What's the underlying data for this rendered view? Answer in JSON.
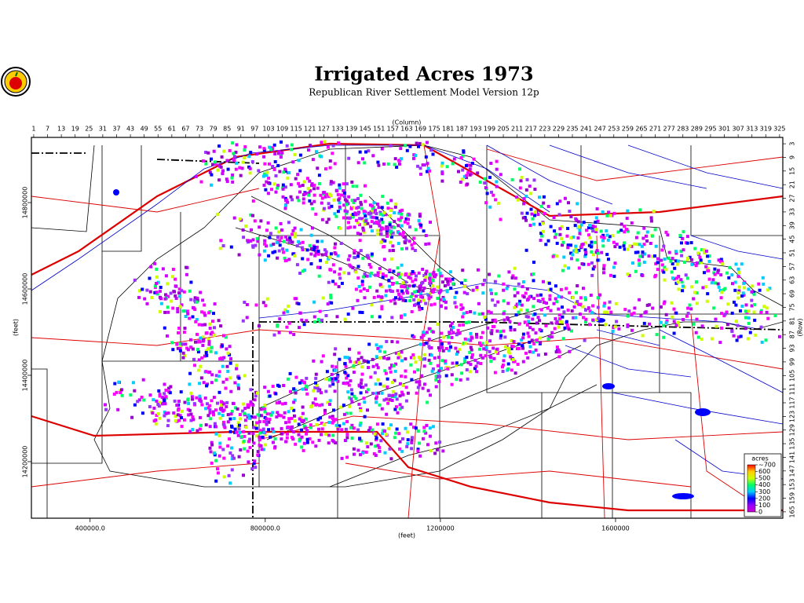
{
  "chart_data": {
    "type": "map",
    "title": "Irrigated Acres 1973",
    "subtitle": "Republican River Settlement Model Version 12p",
    "column_axis": {
      "label": "(Column)",
      "lim": [
        0,
        326.4
      ],
      "ticks": [
        1,
        7,
        13,
        19,
        25,
        31,
        37,
        43,
        49,
        55,
        61,
        67,
        73,
        79,
        85,
        91,
        97,
        103,
        109,
        115,
        121,
        127,
        133,
        139,
        145,
        151,
        157,
        163,
        169,
        175,
        181,
        187,
        193,
        199,
        205,
        211,
        217,
        223,
        229,
        235,
        241,
        247,
        253,
        259,
        265,
        271,
        277,
        283,
        289,
        295,
        301,
        307,
        313,
        319,
        325
      ]
    },
    "row_axis": {
      "label": "(Row)",
      "lim": [
        0.2,
        167.8
      ],
      "ticks": [
        3,
        9,
        15,
        21,
        27,
        33,
        39,
        45,
        51,
        57,
        63,
        69,
        75,
        81,
        87,
        93,
        99,
        105,
        111,
        117,
        123,
        129,
        135,
        141,
        147,
        153,
        159,
        165
      ]
    },
    "xlabel": "(feet)",
    "xlim": [
      266000,
      1982000
    ],
    "xticks": [
      {
        "value": 400000,
        "label": "400000.0"
      },
      {
        "value": 800000,
        "label": "800000.0"
      },
      1200000,
      1600000
    ],
    "ylabel": "(feet)",
    "ylim": [
      14069000,
      14951000
    ],
    "yticks": [
      14800000,
      14600000,
      14400000,
      14200000
    ],
    "legend": {
      "title": "acres",
      "lim": [
        0,
        700
      ],
      "ticks": [
        {
          "value": 700,
          "label": "~700"
        },
        600,
        500,
        400,
        300,
        200,
        100,
        0
      ],
      "colors": [
        "#cc00cc",
        "#9900ff",
        "#0000ff",
        "#00ccff",
        "#00ff66",
        "#ccff00",
        "#ffcc00",
        "#ff0000"
      ]
    }
  }
}
